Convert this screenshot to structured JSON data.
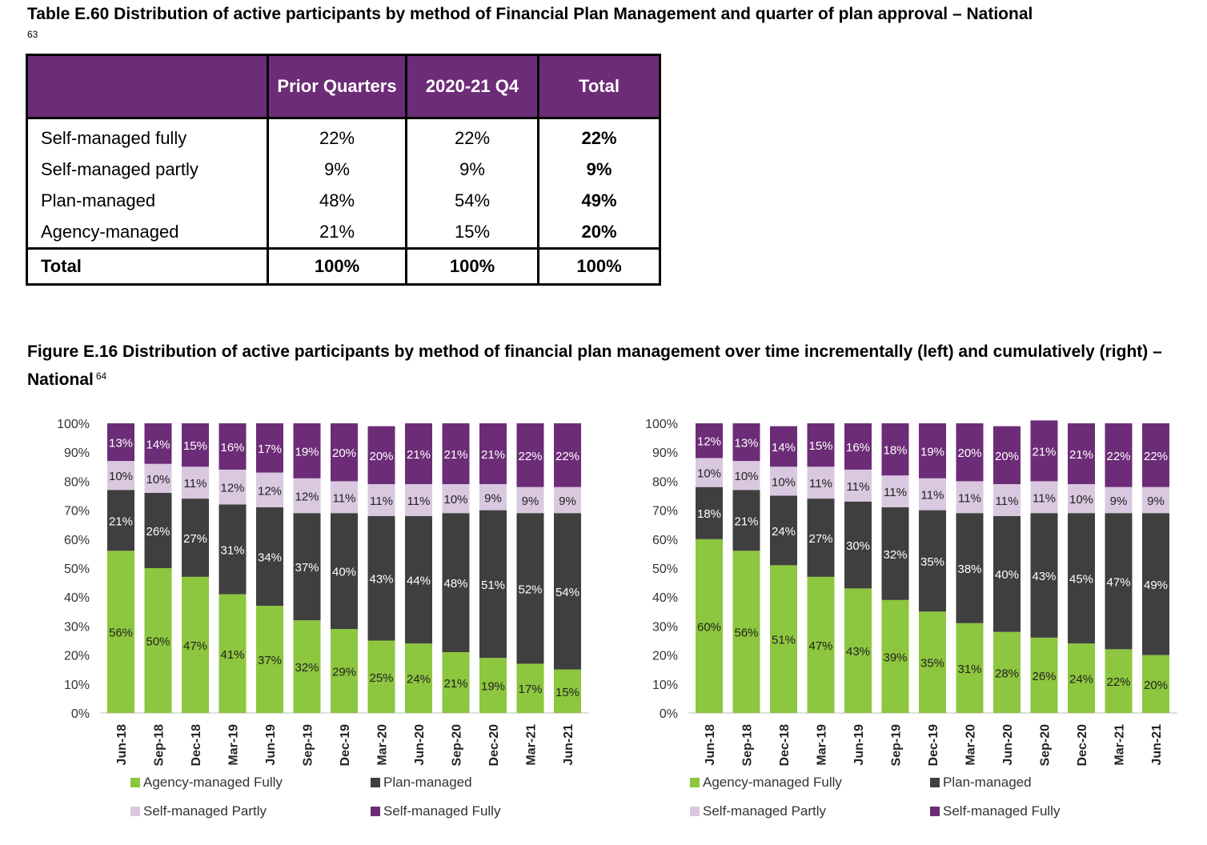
{
  "table": {
    "title": "Table E.60 Distribution of active participants by method of Financial Plan Management and quarter of plan approval – National",
    "footnote": "63",
    "headers": [
      "",
      "Prior Quarters",
      "2020-21 Q4",
      "Total"
    ],
    "rows": [
      {
        "label": "Self-managed fully",
        "prior": "22%",
        "q4": "22%",
        "total": "22%"
      },
      {
        "label": "Self-managed partly",
        "prior": "9%",
        "q4": "9%",
        "total": "9%"
      },
      {
        "label": "Plan-managed",
        "prior": "48%",
        "q4": "54%",
        "total": "49%"
      },
      {
        "label": "Agency-managed",
        "prior": "21%",
        "q4": "15%",
        "total": "20%"
      }
    ],
    "total_row": {
      "label": "Total",
      "prior": "100%",
      "q4": "100%",
      "total": "100%"
    }
  },
  "figure": {
    "title": "Figure E.16 Distribution of active participants by method of financial plan management over time incrementally (left) and cumulatively (right) – National",
    "footnote": "64"
  },
  "legend": [
    {
      "name": "Agency-managed Fully",
      "color": "#8dc63f"
    },
    {
      "name": "Plan-managed",
      "color": "#3f3f3f"
    },
    {
      "name": "Self-managed Partly",
      "color": "#d9c8e0"
    },
    {
      "name": "Self-managed Fully",
      "color": "#6d2c77"
    }
  ],
  "chart_data": [
    {
      "type": "bar",
      "stacked": true,
      "categories": [
        "Jun-18",
        "Sep-18",
        "Dec-18",
        "Mar-19",
        "Jun-19",
        "Sep-19",
        "Dec-19",
        "Mar-20",
        "Jun-20",
        "Sep-20",
        "Dec-20",
        "Mar-21",
        "Jun-21"
      ],
      "y_ticks": [
        "0%",
        "10%",
        "20%",
        "30%",
        "40%",
        "50%",
        "60%",
        "70%",
        "80%",
        "90%",
        "100%"
      ],
      "ylim": [
        0,
        100
      ],
      "legend_position": "bottom",
      "series": [
        {
          "name": "Agency-managed Fully",
          "color": "#8dc63f",
          "values": [
            56,
            50,
            47,
            41,
            37,
            32,
            29,
            25,
            24,
            21,
            19,
            17,
            15
          ]
        },
        {
          "name": "Plan-managed",
          "color": "#3f3f3f",
          "values": [
            21,
            26,
            27,
            31,
            34,
            37,
            40,
            43,
            44,
            48,
            51,
            52,
            54
          ]
        },
        {
          "name": "Self-managed Partly",
          "color": "#d9c8e0",
          "values": [
            10,
            10,
            11,
            12,
            12,
            12,
            11,
            11,
            11,
            10,
            9,
            9,
            9
          ]
        },
        {
          "name": "Self-managed Fully",
          "color": "#6d2c77",
          "values": [
            13,
            14,
            15,
            16,
            17,
            19,
            20,
            20,
            21,
            21,
            21,
            22,
            22
          ]
        }
      ]
    },
    {
      "type": "bar",
      "stacked": true,
      "categories": [
        "Jun-18",
        "Sep-18",
        "Dec-18",
        "Mar-19",
        "Jun-19",
        "Sep-19",
        "Dec-19",
        "Mar-20",
        "Jun-20",
        "Sep-20",
        "Dec-20",
        "Mar-21",
        "Jun-21"
      ],
      "y_ticks": [
        "0%",
        "10%",
        "20%",
        "30%",
        "40%",
        "50%",
        "60%",
        "70%",
        "80%",
        "90%",
        "100%"
      ],
      "ylim": [
        0,
        100
      ],
      "legend_position": "bottom",
      "series": [
        {
          "name": "Agency-managed Fully",
          "color": "#8dc63f",
          "values": [
            60,
            56,
            51,
            47,
            43,
            39,
            35,
            31,
            28,
            26,
            24,
            22,
            20
          ]
        },
        {
          "name": "Plan-managed",
          "color": "#3f3f3f",
          "values": [
            18,
            21,
            24,
            27,
            30,
            32,
            35,
            38,
            40,
            43,
            45,
            47,
            49
          ]
        },
        {
          "name": "Self-managed Partly",
          "color": "#d9c8e0",
          "values": [
            10,
            10,
            10,
            11,
            11,
            11,
            11,
            11,
            11,
            11,
            10,
            9,
            9
          ]
        },
        {
          "name": "Self-managed Fully",
          "color": "#6d2c77",
          "values": [
            12,
            13,
            14,
            15,
            16,
            18,
            19,
            20,
            20,
            21,
            21,
            22,
            22
          ]
        }
      ]
    }
  ]
}
